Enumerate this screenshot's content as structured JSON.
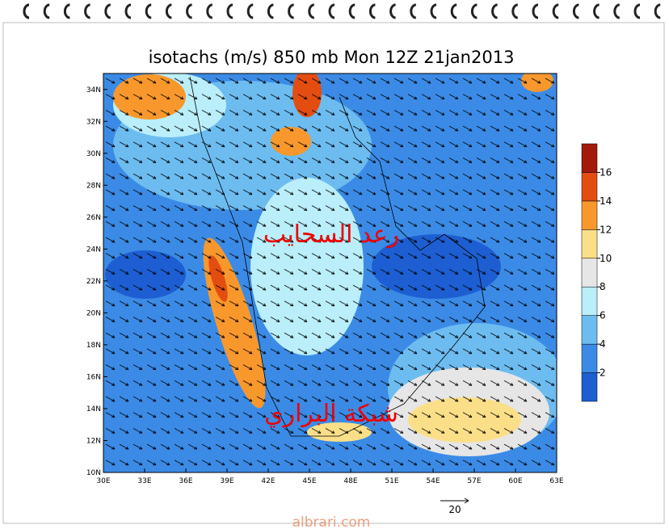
{
  "title": "isotachs (m/s) 850 mb Mon 12Z 21jan2013",
  "map": {
    "xlim": [
      30,
      63
    ],
    "ylim": [
      10,
      35
    ],
    "xticks": [
      {
        "value": 30,
        "label": "30E"
      },
      {
        "value": 33,
        "label": "33E"
      },
      {
        "value": 36,
        "label": "36E"
      },
      {
        "value": 39,
        "label": "39E"
      },
      {
        "value": 42,
        "label": "42E"
      },
      {
        "value": 45,
        "label": "45E"
      },
      {
        "value": 48,
        "label": "48E"
      },
      {
        "value": 51,
        "label": "51E"
      },
      {
        "value": 54,
        "label": "54E"
      },
      {
        "value": 57,
        "label": "57E"
      },
      {
        "value": 60,
        "label": "60E"
      },
      {
        "value": 63,
        "label": "63E"
      }
    ],
    "yticks": [
      {
        "value": 10,
        "label": "10N"
      },
      {
        "value": 12,
        "label": "12N"
      },
      {
        "value": 14,
        "label": "14N"
      },
      {
        "value": 16,
        "label": "16N"
      },
      {
        "value": 18,
        "label": "18N"
      },
      {
        "value": 20,
        "label": "20N"
      },
      {
        "value": 22,
        "label": "22N"
      },
      {
        "value": 24,
        "label": "24N"
      },
      {
        "value": 26,
        "label": "26N"
      },
      {
        "value": 28,
        "label": "28N"
      },
      {
        "value": 30,
        "label": "30N"
      },
      {
        "value": 32,
        "label": "32N"
      },
      {
        "value": 34,
        "label": "34N"
      }
    ]
  },
  "colorbar": {
    "levels": [
      2,
      4,
      6,
      8,
      10,
      12,
      14,
      16
    ],
    "colors": [
      "#1d5fd2",
      "#3b8be6",
      "#6cbcf0",
      "#b9eefa",
      "#e6e6e6",
      "#fbdf88",
      "#f8982c",
      "#e44d10",
      "#a41a0a"
    ]
  },
  "annotations": [
    "رعد السحايب",
    "شبكة البراري"
  ],
  "vector_scale": 20,
  "watermark": "albrari.com"
}
